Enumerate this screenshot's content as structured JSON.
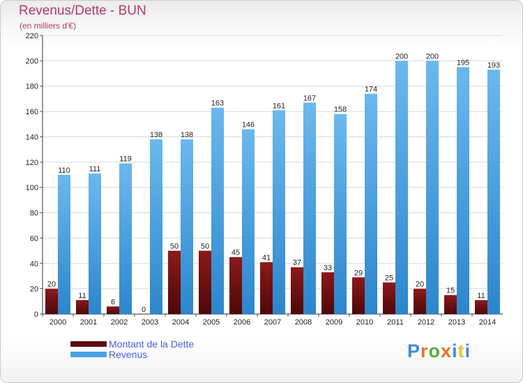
{
  "title": "Revenus/Dette - BUN",
  "subtitle": "(en milliers d'€)",
  "colors": {
    "debt_top": "#8b1a1a",
    "debt_bottom": "#4e0708",
    "revenue_top": "#6bb8ee",
    "revenue_bottom": "#2c86cc",
    "title": "#b1396a",
    "legend_text": "#4a5fe0",
    "axis_text": "#222222",
    "grid": "#d8d8d8"
  },
  "legend": [
    {
      "label": "Montant de la Dette",
      "color": "#5a0a0c"
    },
    {
      "label": "Revenus",
      "color": "#4aa3e6"
    }
  ],
  "logo": {
    "text": "Proxiti",
    "letter_colors": [
      "#3b8fd6",
      "#e8712a",
      "#5aab3c",
      "#e8712a",
      "#3b8fd6",
      "#e8c22a",
      "#3b8fd6"
    ]
  },
  "chart_data": {
    "type": "bar",
    "categories": [
      "2000",
      "2001",
      "2002",
      "2003",
      "2004",
      "2005",
      "2006",
      "2007",
      "2008",
      "2009",
      "2010",
      "2011",
      "2012",
      "2013",
      "2014"
    ],
    "series": [
      {
        "name": "Montant de la Dette",
        "values": [
          20,
          11,
          6,
          0,
          50,
          50,
          45,
          41,
          37,
          33,
          29,
          25,
          20,
          15,
          11
        ]
      },
      {
        "name": "Revenus",
        "values": [
          110,
          111,
          119,
          138,
          138,
          163,
          146,
          161,
          167,
          158,
          174,
          200,
          200,
          195,
          193
        ]
      }
    ],
    "ylim": [
      0,
      220
    ],
    "yticks": [
      0,
      20,
      40,
      60,
      80,
      100,
      120,
      140,
      160,
      180,
      200,
      220
    ],
    "grid": true,
    "legend_position": "bottom-left",
    "xlabel": "",
    "ylabel": ""
  }
}
